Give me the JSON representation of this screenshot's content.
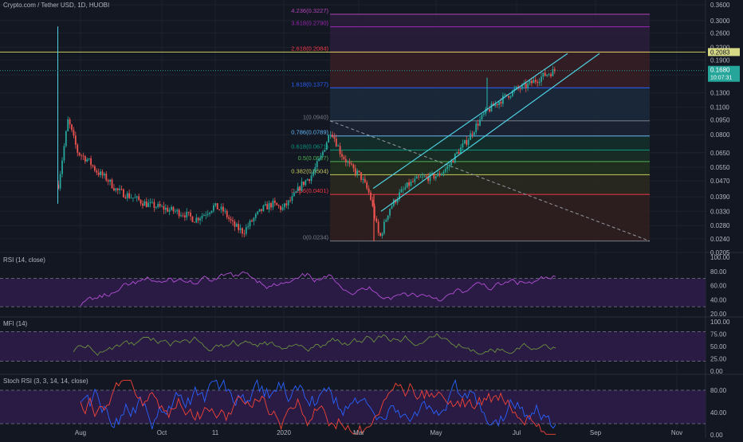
{
  "title": "Crypto.com / Tether USD, 1D, HUOBI",
  "colors": {
    "bg": "#131722",
    "grid": "#1e222d",
    "axis_text": "#b2b5be",
    "up": "#26a69a",
    "down": "#ef5350",
    "wick": "#8a8f9a",
    "channel": "#4dd0e1",
    "trend_dashed": "#9598a1",
    "yellow_line": "#c8cc5e",
    "rsi": "#b44fd6",
    "mfi": "#6b8f3e",
    "stoch_k": "#2962ff",
    "stoch_d": "#f44336",
    "band_fill": "#2a1b47",
    "price_tag": "#26a69a",
    "ann_tag": "#d6d886"
  },
  "price_axis": {
    "ticks": [
      "0.3600",
      "0.3000",
      "0.2600",
      "0.2200",
      "0.1900",
      "0.1600",
      "0.1300",
      "0.1100",
      "0.0950",
      "0.0800",
      "0.0650",
      "0.0550",
      "0.0470",
      "0.0390",
      "0.0330",
      "0.0280",
      "0.0240",
      "0.0205"
    ],
    "last_price": "0.1680",
    "countdown": "10:07:31",
    "annotated_level": "0.2083"
  },
  "x_axis": {
    "labels": [
      "Aug",
      "Oct",
      "11",
      "2020",
      "Mar",
      "May",
      "Jul",
      "Sep",
      "Nov"
    ]
  },
  "fib_levels": [
    {
      "label": "4.236(0.3227)",
      "value": 0.3227,
      "color": "#b245b6"
    },
    {
      "label": "3.618(0.2790)",
      "value": 0.279,
      "color": "#9c27b0"
    },
    {
      "label": "2.618(0.2084)",
      "value": 0.2084,
      "color": "#f23645"
    },
    {
      "label": "1.618(0.1377)",
      "value": 0.1377,
      "color": "#2962ff"
    },
    {
      "label": "1(0.0940)",
      "value": 0.094,
      "color": "#787b86"
    },
    {
      "label": "0.786(0.0789)",
      "value": 0.0789,
      "color": "#64b5f6"
    },
    {
      "label": "0.618(0.0671)",
      "value": 0.0671,
      "color": "#089981"
    },
    {
      "label": "0.5(0.0587)",
      "value": 0.0587,
      "color": "#4caf50"
    },
    {
      "label": "0.382(0.0504)",
      "value": 0.0504,
      "color": "#c8cc5e"
    },
    {
      "label": "0.236(0.0401)",
      "value": 0.0401,
      "color": "#f23645"
    },
    {
      "label": "0(0.0234)",
      "value": 0.0234,
      "color": "#787b86"
    }
  ],
  "panes": {
    "rsi": {
      "title": "RSI (14, close)",
      "ticks": [
        "100.00",
        "80.00",
        "60.00",
        "40.00",
        "20.00"
      ]
    },
    "mfi": {
      "title": "MFI (14)",
      "ticks": [
        "100.00",
        "75.00",
        "50.00",
        "25.00",
        "0.00"
      ]
    },
    "stoch": {
      "title": "Stoch RSI (3, 3, 14, 14, close)",
      "ticks": [
        "80.00",
        "40.00",
        "0.00"
      ]
    }
  },
  "chart_data": [
    {
      "type": "candlestick",
      "title": "Crypto.com / Tether USD, 1D, HUOBI",
      "scale": "log",
      "x_range": [
        "2019-06-20",
        "2020-11-25"
      ],
      "ylim": [
        0.0205,
        0.36
      ],
      "series": [
        {
          "ohlc_closes": [
            0.045,
            0.095,
            0.065,
            0.06,
            0.052,
            0.048,
            0.042,
            0.04,
            0.038,
            0.036,
            0.035,
            0.034,
            0.033,
            0.032,
            0.03,
            0.032,
            0.035,
            0.033,
            0.028,
            0.026,
            0.03,
            0.034,
            0.036,
            0.034,
            0.038,
            0.045,
            0.05,
            0.062,
            0.085,
            0.065,
            0.055,
            0.05,
            0.04,
            0.024,
            0.034,
            0.04,
            0.045,
            0.048,
            0.049,
            0.05,
            0.055,
            0.065,
            0.075,
            0.09,
            0.105,
            0.115,
            0.125,
            0.135,
            0.14,
            0.15,
            0.16,
            0.168
          ]
        }
      ],
      "spike_high": 0.28,
      "ascending_channel": {
        "from": "2020-03-15",
        "to": "2020-08-20",
        "low_start": 0.033,
        "low_end": 0.205
      },
      "last_price": 0.168
    },
    {
      "type": "line",
      "title": "RSI (14, close)",
      "ylim": [
        20,
        100
      ],
      "bands": [
        30,
        70
      ]
    },
    {
      "type": "line",
      "title": "MFI (14)",
      "ylim": [
        0,
        100
      ],
      "bands": [
        20,
        80
      ]
    },
    {
      "type": "line",
      "title": "Stoch RSI (3, 3, 14, 14, close)",
      "ylim": [
        0,
        100
      ],
      "bands": [
        20,
        80
      ],
      "series": [
        {
          "name": "K"
        },
        {
          "name": "D"
        }
      ]
    }
  ]
}
